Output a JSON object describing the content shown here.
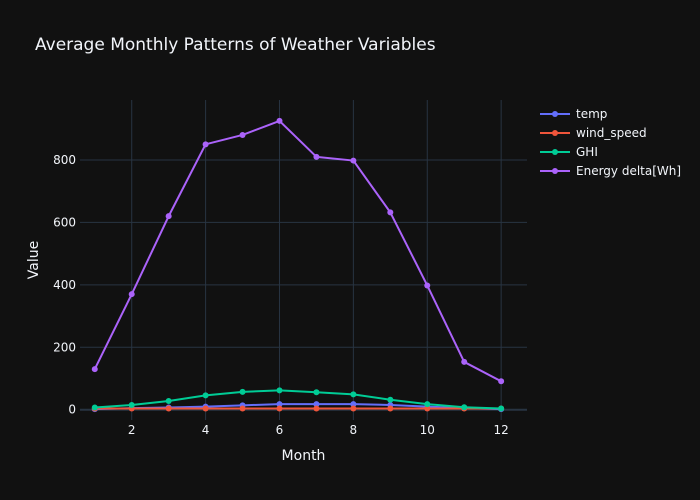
{
  "chart_data": {
    "type": "line",
    "title": "Average Monthly Patterns of Weather Variables",
    "xlabel": "Month",
    "ylabel": "Value",
    "x": [
      1,
      2,
      3,
      4,
      5,
      6,
      7,
      8,
      9,
      10,
      11,
      12
    ],
    "xlim": [
      0.6,
      12.7
    ],
    "ylim": [
      -33,
      992
    ],
    "xticks": [
      2,
      4,
      6,
      8,
      10,
      12
    ],
    "yticks": [
      0,
      200,
      400,
      600,
      800
    ],
    "grid": true,
    "legend_position": "top-right",
    "background_color": "#111111",
    "grid_color": "#283442",
    "series": [
      {
        "name": "temp",
        "color": "#636efa",
        "values": [
          2,
          5,
          7,
          10,
          14,
          18,
          18,
          18,
          15,
          10,
          5,
          2
        ]
      },
      {
        "name": "wind_speed",
        "color": "#EF553B",
        "values": [
          4,
          4,
          4,
          4,
          4,
          4,
          4,
          4,
          4,
          4,
          4,
          4
        ]
      },
      {
        "name": "GHI",
        "color": "#00cc96",
        "values": [
          7,
          15,
          28,
          46,
          57,
          62,
          56,
          49,
          32,
          18,
          8,
          4
        ]
      },
      {
        "name": "Energy delta[Wh]",
        "color": "#ab63fa",
        "values": [
          130,
          370,
          620,
          850,
          880,
          925,
          810,
          798,
          632,
          398,
          153,
          91
        ]
      }
    ]
  }
}
